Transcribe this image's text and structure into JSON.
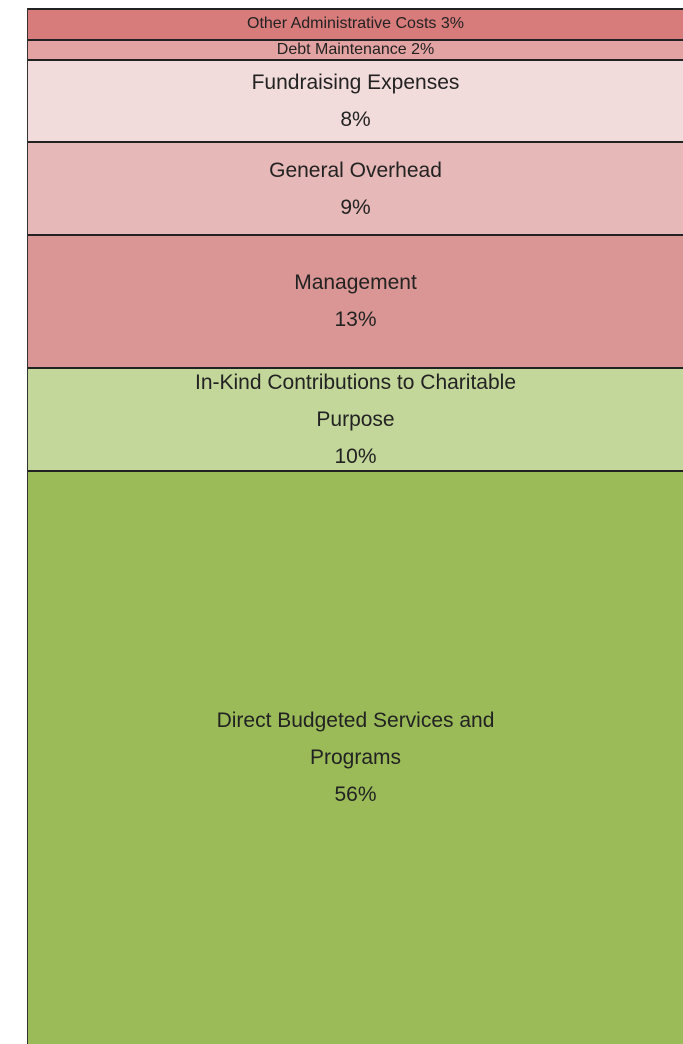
{
  "chart_data": {
    "type": "bar",
    "stacked": true,
    "series": [
      {
        "name": "Direct Budgeted Services and Programs",
        "color": "#9bbb59",
        "values": [
          56
        ],
        "value_labels": [
          "56%"
        ]
      },
      {
        "name": "In-Kind Contributions to Charitable Purpose",
        "color": "#c4d79b",
        "values": [
          10
        ],
        "value_labels": [
          "10%"
        ]
      },
      {
        "name": "Management",
        "color": "#da9694",
        "values": [
          13
        ],
        "value_labels": [
          "13%"
        ]
      },
      {
        "name": "General Overhead",
        "color": "#e6b8b7",
        "values": [
          9
        ],
        "value_labels": [
          "9%"
        ]
      },
      {
        "name": "Fundraising Expenses",
        "color": "#f2dcdb",
        "values": [
          8
        ],
        "value_labels": [
          "8%"
        ]
      },
      {
        "name": "Debt Maintenance",
        "color": "#e3a3a2",
        "values": [
          2
        ],
        "value_labels": [
          "2%"
        ]
      },
      {
        "name": "Other Administrative Costs",
        "color": "#d77b7b",
        "values": [
          3
        ],
        "value_labels": [
          "3%"
        ]
      }
    ]
  }
}
